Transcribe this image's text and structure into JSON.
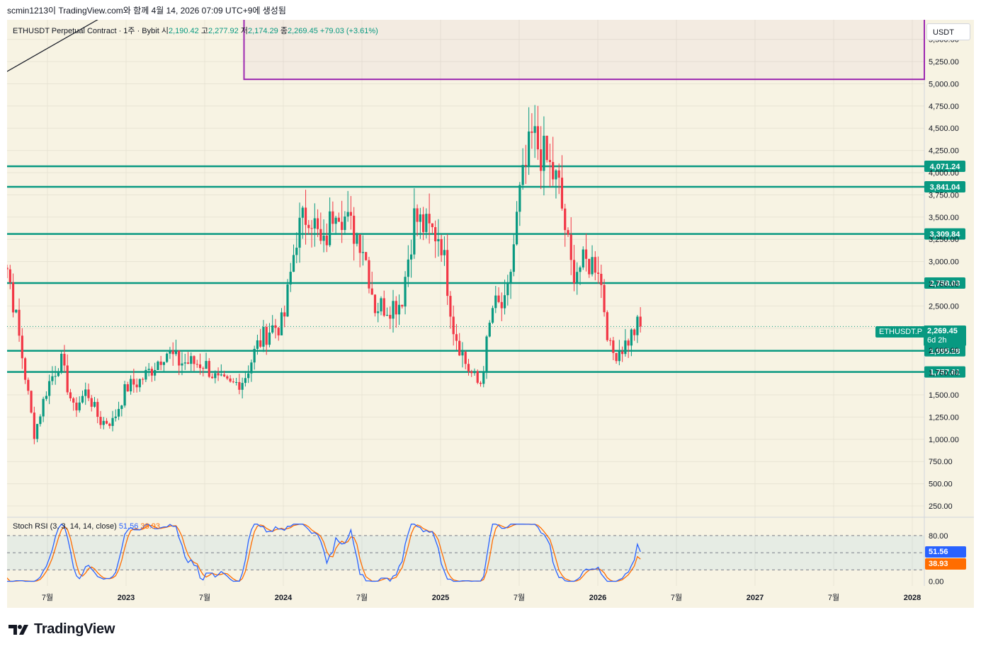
{
  "header": {
    "published": "scmin1213이 TradingView.com와 함께 4월 14, 2026 07:09 UTC+9에 생성됨"
  },
  "legend": {
    "symbol": "ETHUSDT Perpetual Contract · 1주 · Bybit",
    "open_label": "시",
    "open": "2,190.42",
    "high_label": "고",
    "high": "2,277.92",
    "low_label": "저",
    "low": "2,174.29",
    "close_label": "종",
    "close": "2,269.45",
    "change": "+79.03 (+3.61%)"
  },
  "currency": "USDT",
  "stoch": {
    "title": "Stoch RSI (3, 3, 14, 14, close)",
    "k_value": "51.56",
    "d_value": "38.93"
  },
  "price_tag": {
    "symbol": "ETHUSDT.P",
    "price": "2,269.45",
    "countdown": "6d 2h"
  },
  "colors": {
    "up": "#089981",
    "down": "#f23645",
    "level": "#089981",
    "box": "#9c27b0",
    "k": "#2962ff",
    "d": "#ff6d00",
    "bg": "#f7f3e3"
  },
  "footer": {
    "brand": "TradingView"
  },
  "chart_data": [
    {
      "type": "candlestick",
      "title": "ETHUSDT Perpetual Contract · 1주 · Bybit",
      "y_ticks": [
        "250.00",
        "500.00",
        "750.00",
        "1,000.00",
        "1,250.00",
        "1,500.00",
        "1,750.00",
        "2,000.00",
        "2,250.00",
        "2,500.00",
        "2,750.00",
        "3,000.00",
        "3,250.00",
        "3,500.00",
        "3,750.00",
        "4,000.00",
        "4,250.00",
        "4,500.00",
        "4,750.00",
        "5,000.00",
        "5,250.00",
        "5,500.00"
      ],
      "ylim": [
        80,
        5800
      ],
      "x_ticks": [
        "7월",
        "2023",
        "7월",
        "2024",
        "7월",
        "2025",
        "7월",
        "2026",
        "7월",
        "2027",
        "7월",
        "2028"
      ],
      "horizontal_levels": [
        {
          "value": 4071.24,
          "label": "4,071.24"
        },
        {
          "value": 3841.04,
          "label": "3,841.04"
        },
        {
          "value": 3309.84,
          "label": "3,309.84"
        },
        {
          "value": 2758.03,
          "label": "2,758.03"
        },
        {
          "value": 1995.28,
          "label": "1,995.28"
        },
        {
          "value": 1757.61,
          "label": "1,757.61"
        }
      ],
      "zone_box": {
        "from": "2023-10",
        "to": "2028",
        "low": 5050,
        "high": 5700
      },
      "anchor_points": [
        [
          "2022-03",
          3300
        ],
        [
          "2022-04",
          2900
        ],
        [
          "2022-05",
          2000
        ],
        [
          "2022-06",
          1050
        ],
        [
          "2022-07",
          1600
        ],
        [
          "2022-08",
          1900
        ],
        [
          "2022-09",
          1330
        ],
        [
          "2022-10",
          1550
        ],
        [
          "2022-11",
          1200
        ],
        [
          "2022-12",
          1200
        ],
        [
          "2023-01",
          1580
        ],
        [
          "2023-02",
          1650
        ],
        [
          "2023-03",
          1800
        ],
        [
          "2023-04",
          2000
        ],
        [
          "2023-05",
          1870
        ],
        [
          "2023-06",
          1860
        ],
        [
          "2023-07",
          1850
        ],
        [
          "2023-08",
          1650
        ],
        [
          "2023-09",
          1600
        ],
        [
          "2023-10",
          1680
        ],
        [
          "2023-11",
          2050
        ],
        [
          "2023-12",
          2250
        ],
        [
          "2024-01",
          2300
        ],
        [
          "2024-02",
          3300
        ],
        [
          "2024-03",
          3600
        ],
        [
          "2024-04",
          3100
        ],
        [
          "2024-05",
          3700
        ],
        [
          "2024-06",
          3400
        ],
        [
          "2024-07",
          3250
        ],
        [
          "2024-08",
          2500
        ],
        [
          "2024-09",
          2500
        ],
        [
          "2024-10",
          2550
        ],
        [
          "2024-11",
          3500
        ],
        [
          "2024-12",
          3350
        ],
        [
          "2025-01",
          3300
        ],
        [
          "2025-02",
          2250
        ],
        [
          "2025-03",
          1820
        ],
        [
          "2025-04",
          1590
        ],
        [
          "2025-05",
          2500
        ],
        [
          "2025-06",
          2480
        ],
        [
          "2025-07",
          3700
        ],
        [
          "2025-08",
          4400
        ],
        [
          "2025-09",
          4150
        ],
        [
          "2025-10",
          3850
        ],
        [
          "2025-11",
          2900
        ],
        [
          "2025-12",
          2970
        ],
        [
          "2026-01",
          3000
        ],
        [
          "2026-02",
          1950
        ],
        [
          "2026-03",
          2050
        ],
        [
          "2026-04",
          2269
        ]
      ]
    },
    {
      "type": "line",
      "title": "Stoch RSI (3, 3, 14, 14, close)",
      "y_ticks": [
        "80.00",
        "0.00"
      ],
      "ylim": [
        -8,
        112
      ],
      "guide_lines": [
        80,
        50,
        20
      ],
      "series": [
        {
          "name": "K",
          "last": 51.56
        },
        {
          "name": "D",
          "last": 38.93
        }
      ]
    }
  ]
}
